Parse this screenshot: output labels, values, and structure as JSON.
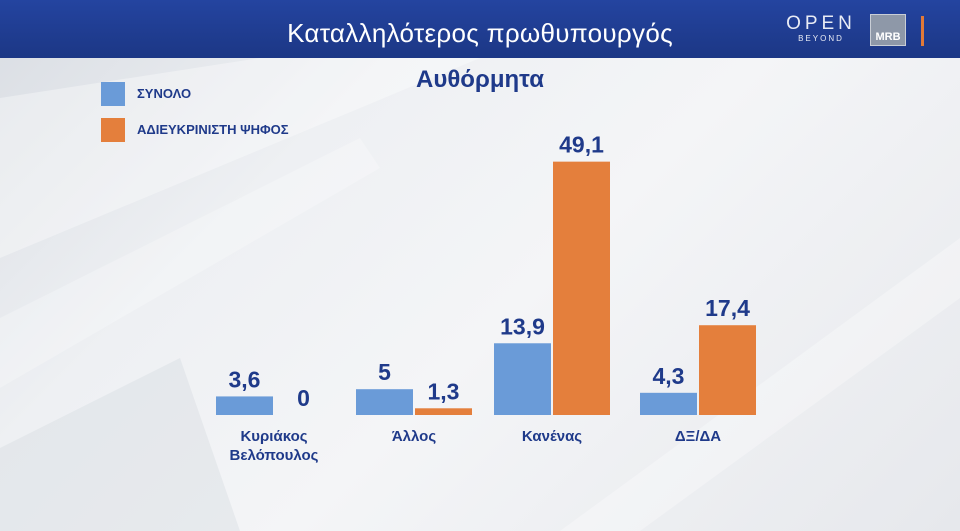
{
  "header": {
    "title": "Καταλληλότερος πρωθυπουργός",
    "logo_open": "OPEN",
    "logo_open_sub": "BEYOND",
    "logo_mrb": "MRB"
  },
  "colors": {
    "header_bg": "#1f3a8a",
    "text_dark_blue": "#1f3a8a",
    "series_total": "#6a9bd8",
    "series_undecided": "#e47f3c",
    "accent_orange": "#e27a38"
  },
  "chart_data": {
    "type": "bar",
    "title": "Αυθόρμητα",
    "categories": [
      "Κυριάκος Βελόπουλος",
      "Άλλος",
      "Κανένας",
      "ΔΞ/ΔΑ"
    ],
    "series": [
      {
        "name": "ΣΥΝΟΛΟ",
        "values": [
          3.6,
          5,
          13.9,
          4.3
        ],
        "labels": [
          "3,6",
          "5",
          "13,9",
          "4,3"
        ]
      },
      {
        "name": "ΑΔΙΕΥΚΡΙΝΙΣΤΗ ΨΗΦΟΣ",
        "values": [
          0,
          1.3,
          49.1,
          17.4
        ],
        "labels": [
          "0",
          "1,3",
          "49,1",
          "17,4"
        ]
      }
    ],
    "legend_position": "top-left",
    "grid": false,
    "ylim": [
      0,
      50
    ]
  }
}
